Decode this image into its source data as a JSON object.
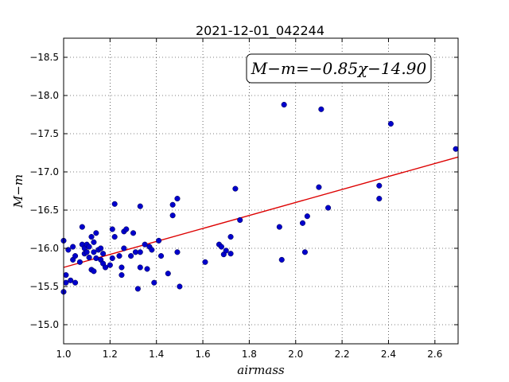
{
  "chart_data": {
    "type": "scatter",
    "title": "2021-12-01_042244",
    "xlabel": "airmass",
    "ylabel": "M−m",
    "xlim": [
      1.0,
      2.7
    ],
    "ylim": [
      -18.75,
      -14.75
    ],
    "y_inverted": true,
    "grid": true,
    "xticks": [
      1.0,
      1.2,
      1.4,
      1.6,
      1.8,
      2.0,
      2.2,
      2.4,
      2.6
    ],
    "xtick_labels": [
      "1.0",
      "1.2",
      "1.4",
      "1.6",
      "1.8",
      "2.0",
      "2.2",
      "2.4",
      "2.6"
    ],
    "yticks": [
      -15.0,
      -15.5,
      -16.0,
      -16.5,
      -17.0,
      -17.5,
      -18.0,
      -18.5
    ],
    "ytick_labels": [
      "−15.0",
      "−15.5",
      "−16.0",
      "−16.5",
      "−17.0",
      "−17.5",
      "−18.0",
      "−18.5"
    ],
    "annotation": "M−m=−0.85χ−14.90",
    "point_color": "#0000cc",
    "line_color": "#dd0000",
    "fit": {
      "slope": -0.85,
      "intercept": -14.9
    },
    "points": [
      {
        "x": 1.0,
        "y": -15.43
      },
      {
        "x": 1.0,
        "y": -16.1
      },
      {
        "x": 1.01,
        "y": -15.65
      },
      {
        "x": 1.01,
        "y": -15.55
      },
      {
        "x": 1.02,
        "y": -15.98
      },
      {
        "x": 1.03,
        "y": -15.58
      },
      {
        "x": 1.04,
        "y": -15.85
      },
      {
        "x": 1.04,
        "y": -16.02
      },
      {
        "x": 1.05,
        "y": -15.9
      },
      {
        "x": 1.05,
        "y": -15.55
      },
      {
        "x": 1.07,
        "y": -15.82
      },
      {
        "x": 1.08,
        "y": -16.05
      },
      {
        "x": 1.08,
        "y": -16.28
      },
      {
        "x": 1.09,
        "y": -15.93
      },
      {
        "x": 1.09,
        "y": -16.0
      },
      {
        "x": 1.1,
        "y": -15.95
      },
      {
        "x": 1.1,
        "y": -16.05
      },
      {
        "x": 1.11,
        "y": -15.88
      },
      {
        "x": 1.11,
        "y": -16.02
      },
      {
        "x": 1.12,
        "y": -15.72
      },
      {
        "x": 1.12,
        "y": -16.15
      },
      {
        "x": 1.13,
        "y": -15.7
      },
      {
        "x": 1.13,
        "y": -15.95
      },
      {
        "x": 1.13,
        "y": -16.08
      },
      {
        "x": 1.14,
        "y": -15.87
      },
      {
        "x": 1.14,
        "y": -16.2
      },
      {
        "x": 1.15,
        "y": -15.98
      },
      {
        "x": 1.16,
        "y": -15.85
      },
      {
        "x": 1.16,
        "y": -16.0
      },
      {
        "x": 1.17,
        "y": -15.8
      },
      {
        "x": 1.17,
        "y": -15.93
      },
      {
        "x": 1.18,
        "y": -15.75
      },
      {
        "x": 1.2,
        "y": -15.78
      },
      {
        "x": 1.21,
        "y": -16.25
      },
      {
        "x": 1.21,
        "y": -15.87
      },
      {
        "x": 1.22,
        "y": -16.15
      },
      {
        "x": 1.22,
        "y": -16.58
      },
      {
        "x": 1.24,
        "y": -15.9
      },
      {
        "x": 1.25,
        "y": -15.65
      },
      {
        "x": 1.25,
        "y": -15.75
      },
      {
        "x": 1.26,
        "y": -16.0
      },
      {
        "x": 1.26,
        "y": -16.22
      },
      {
        "x": 1.27,
        "y": -16.25
      },
      {
        "x": 1.29,
        "y": -15.9
      },
      {
        "x": 1.3,
        "y": -16.2
      },
      {
        "x": 1.31,
        "y": -15.95
      },
      {
        "x": 1.32,
        "y": -15.47
      },
      {
        "x": 1.33,
        "y": -15.95
      },
      {
        "x": 1.33,
        "y": -16.55
      },
      {
        "x": 1.33,
        "y": -15.75
      },
      {
        "x": 1.35,
        "y": -16.05
      },
      {
        "x": 1.36,
        "y": -15.73
      },
      {
        "x": 1.37,
        "y": -16.02
      },
      {
        "x": 1.38,
        "y": -15.98
      },
      {
        "x": 1.39,
        "y": -15.55
      },
      {
        "x": 1.41,
        "y": -16.1
      },
      {
        "x": 1.42,
        "y": -15.9
      },
      {
        "x": 1.45,
        "y": -15.67
      },
      {
        "x": 1.47,
        "y": -16.43
      },
      {
        "x": 1.47,
        "y": -16.57
      },
      {
        "x": 1.49,
        "y": -15.95
      },
      {
        "x": 1.49,
        "y": -16.65
      },
      {
        "x": 1.5,
        "y": -15.5
      },
      {
        "x": 1.61,
        "y": -15.82
      },
      {
        "x": 1.67,
        "y": -16.05
      },
      {
        "x": 1.68,
        "y": -16.02
      },
      {
        "x": 1.69,
        "y": -15.92
      },
      {
        "x": 1.7,
        "y": -15.97
      },
      {
        "x": 1.72,
        "y": -15.93
      },
      {
        "x": 1.72,
        "y": -16.15
      },
      {
        "x": 1.74,
        "y": -16.78
      },
      {
        "x": 1.76,
        "y": -16.37
      },
      {
        "x": 1.93,
        "y": -16.28
      },
      {
        "x": 1.94,
        "y": -15.85
      },
      {
        "x": 1.95,
        "y": -17.88
      },
      {
        "x": 2.03,
        "y": -16.33
      },
      {
        "x": 2.04,
        "y": -15.95
      },
      {
        "x": 2.05,
        "y": -16.42
      },
      {
        "x": 2.1,
        "y": -16.8
      },
      {
        "x": 2.11,
        "y": -17.82
      },
      {
        "x": 2.14,
        "y": -16.53
      },
      {
        "x": 2.36,
        "y": -16.65
      },
      {
        "x": 2.36,
        "y": -16.82
      },
      {
        "x": 2.41,
        "y": -17.63
      },
      {
        "x": 2.69,
        "y": -17.3
      }
    ]
  }
}
